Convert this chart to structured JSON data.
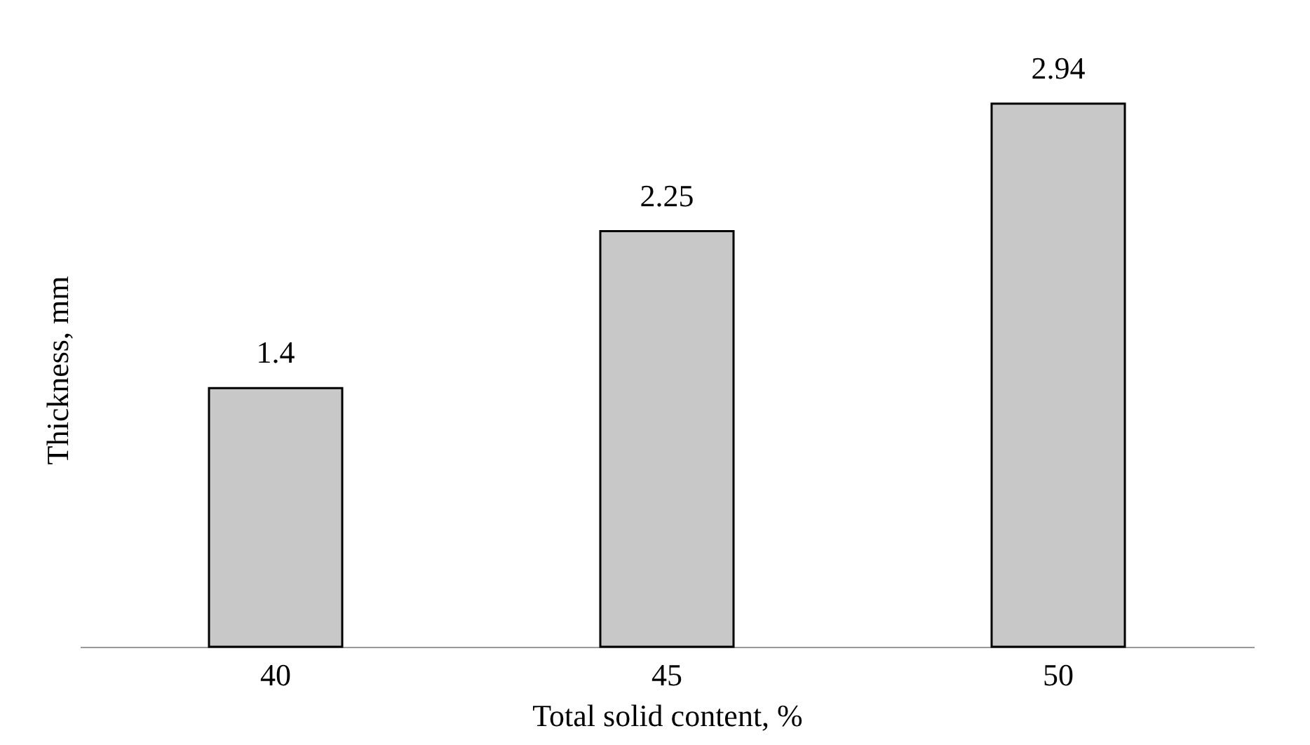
{
  "chart_data": {
    "type": "bar",
    "xlabel": "Total solid content, %",
    "ylabel": "Thickness, mm",
    "categories": [
      "40",
      "45",
      "50"
    ],
    "values": [
      1.4,
      2.25,
      2.94
    ],
    "color": "#c8c8c8",
    "data_labels": true,
    "grid": false
  }
}
